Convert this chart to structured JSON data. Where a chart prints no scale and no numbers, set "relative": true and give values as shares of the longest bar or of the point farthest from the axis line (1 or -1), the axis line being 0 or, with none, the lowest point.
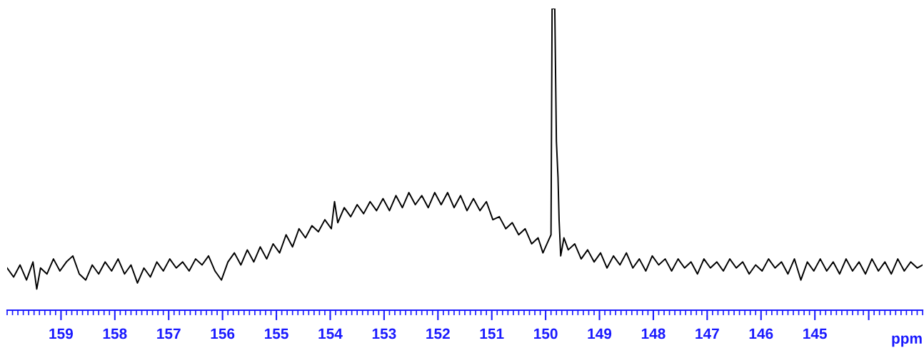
{
  "chart_data": {
    "type": "line",
    "relative": true,
    "xlabel": "ppm",
    "xlim": [
      160.0,
      143.0
    ],
    "xticks": [
      159,
      158,
      157,
      156,
      155,
      154,
      153,
      152,
      151,
      150,
      149,
      148,
      147,
      146,
      145,
      {
        "value": 144,
        "label": null
      }
    ],
    "grid": false,
    "legend": false,
    "marker": "none",
    "line_style": "solid",
    "tick_labels": "x",
    "series": [
      {
        "color": "#000000",
        "x": [
          160.0,
          159.88,
          159.76,
          159.64,
          159.52,
          159.45,
          159.38,
          159.26,
          159.14,
          159.02,
          158.9,
          158.78,
          158.66,
          158.54,
          158.42,
          158.3,
          158.18,
          158.06,
          157.94,
          157.82,
          157.7,
          157.58,
          157.46,
          157.34,
          157.22,
          157.1,
          156.98,
          156.86,
          156.74,
          156.62,
          156.5,
          156.38,
          156.26,
          156.14,
          156.02,
          155.9,
          155.78,
          155.66,
          155.54,
          155.42,
          155.3,
          155.18,
          155.06,
          154.94,
          154.82,
          154.7,
          154.58,
          154.46,
          154.34,
          154.22,
          154.1,
          153.98,
          153.92,
          153.86,
          153.74,
          153.62,
          153.5,
          153.38,
          153.26,
          153.14,
          153.02,
          152.9,
          152.78,
          152.66,
          152.54,
          152.42,
          152.3,
          152.18,
          152.06,
          151.94,
          151.82,
          151.7,
          151.58,
          151.46,
          151.34,
          151.22,
          151.1,
          150.98,
          150.86,
          150.74,
          150.62,
          150.5,
          150.38,
          150.26,
          150.14,
          150.05,
          149.95,
          149.9,
          149.88,
          149.83,
          149.8,
          149.77,
          149.75,
          149.72,
          149.66,
          149.58,
          149.46,
          149.34,
          149.22,
          149.1,
          148.98,
          148.86,
          148.74,
          148.62,
          148.5,
          148.38,
          148.26,
          148.14,
          148.02,
          147.9,
          147.78,
          147.66,
          147.54,
          147.42,
          147.3,
          147.18,
          147.06,
          146.94,
          146.82,
          146.7,
          146.58,
          146.46,
          146.34,
          146.22,
          146.1,
          145.98,
          145.86,
          145.74,
          145.62,
          145.5,
          145.38,
          145.26,
          145.14,
          145.02,
          144.9,
          144.78,
          144.66,
          144.54,
          144.42,
          144.3,
          144.18,
          144.06,
          143.94,
          143.82,
          143.7,
          143.58,
          143.46,
          143.34,
          143.22,
          143.1,
          143.0
        ],
        "values": [
          0.14,
          0.11,
          0.15,
          0.1,
          0.16,
          0.07,
          0.14,
          0.12,
          0.17,
          0.13,
          0.16,
          0.18,
          0.12,
          0.1,
          0.15,
          0.12,
          0.16,
          0.13,
          0.17,
          0.12,
          0.15,
          0.09,
          0.14,
          0.11,
          0.16,
          0.13,
          0.17,
          0.14,
          0.16,
          0.13,
          0.17,
          0.15,
          0.18,
          0.13,
          0.1,
          0.16,
          0.19,
          0.15,
          0.2,
          0.16,
          0.21,
          0.17,
          0.22,
          0.19,
          0.25,
          0.21,
          0.27,
          0.24,
          0.28,
          0.26,
          0.3,
          0.27,
          0.36,
          0.29,
          0.34,
          0.31,
          0.35,
          0.32,
          0.36,
          0.33,
          0.37,
          0.33,
          0.38,
          0.34,
          0.39,
          0.35,
          0.38,
          0.34,
          0.39,
          0.35,
          0.39,
          0.34,
          0.38,
          0.33,
          0.37,
          0.33,
          0.36,
          0.3,
          0.31,
          0.27,
          0.29,
          0.25,
          0.27,
          0.22,
          0.24,
          0.19,
          0.23,
          0.25,
          1.0,
          1.0,
          0.56,
          0.44,
          0.3,
          0.18,
          0.24,
          0.2,
          0.22,
          0.17,
          0.2,
          0.16,
          0.19,
          0.14,
          0.18,
          0.15,
          0.19,
          0.14,
          0.17,
          0.13,
          0.18,
          0.15,
          0.17,
          0.13,
          0.17,
          0.14,
          0.16,
          0.12,
          0.17,
          0.14,
          0.16,
          0.13,
          0.17,
          0.14,
          0.16,
          0.12,
          0.15,
          0.13,
          0.17,
          0.14,
          0.16,
          0.12,
          0.17,
          0.1,
          0.16,
          0.13,
          0.17,
          0.13,
          0.16,
          0.12,
          0.17,
          0.13,
          0.16,
          0.12,
          0.17,
          0.13,
          0.16,
          0.12,
          0.17,
          0.13,
          0.16,
          0.14,
          0.15
        ]
      }
    ]
  }
}
